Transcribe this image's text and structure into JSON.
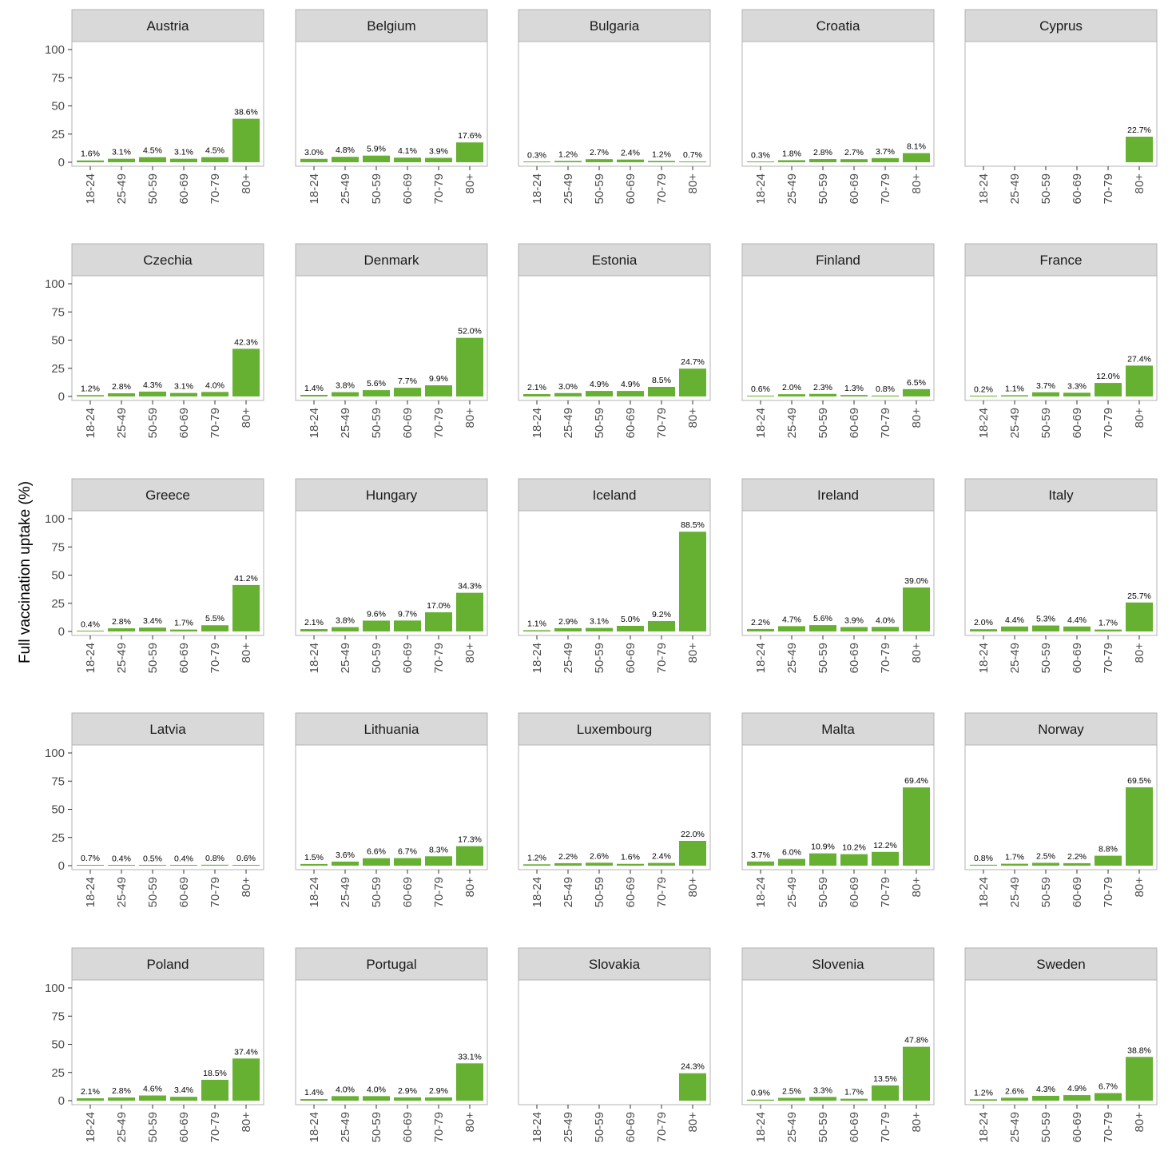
{
  "chart_data": {
    "type": "bar",
    "facet_layout": {
      "rows": 5,
      "cols": 5
    },
    "ylabel": "Full vaccination uptake (%)",
    "ylim": [
      0,
      100
    ],
    "yticks": [
      0,
      25,
      50,
      75,
      100
    ],
    "categories": [
      "18-24",
      "25-49",
      "50-59",
      "60-69",
      "70-79",
      "80+"
    ],
    "bar_color": "#66b032",
    "strip_color": "#d9d9d9",
    "panel_border_color": "#b3b3b3",
    "grid": false,
    "panels": [
      {
        "title": "Austria",
        "values": [
          1.6,
          3.1,
          4.5,
          3.1,
          4.5,
          38.6
        ],
        "labels": [
          "1.6%",
          "3.1%",
          "4.5%",
          "3.1%",
          "4.5%",
          "38.6%"
        ]
      },
      {
        "title": "Belgium",
        "values": [
          3.0,
          4.8,
          5.9,
          4.1,
          3.9,
          17.6
        ],
        "labels": [
          "3.0%",
          "4.8%",
          "5.9%",
          "4.1%",
          "3.9%",
          "17.6%"
        ]
      },
      {
        "title": "Bulgaria",
        "values": [
          0.3,
          1.2,
          2.7,
          2.4,
          1.2,
          0.7
        ],
        "labels": [
          "0.3%",
          "1.2%",
          "2.7%",
          "2.4%",
          "1.2%",
          "0.7%"
        ]
      },
      {
        "title": "Croatia",
        "values": [
          0.3,
          1.8,
          2.8,
          2.7,
          3.7,
          8.1
        ],
        "labels": [
          "0.3%",
          "1.8%",
          "2.8%",
          "2.7%",
          "3.7%",
          "8.1%"
        ]
      },
      {
        "title": "Cyprus",
        "values": [
          null,
          null,
          null,
          null,
          null,
          22.7
        ],
        "labels": [
          "",
          "",
          "",
          "",
          "",
          "22.7%"
        ]
      },
      {
        "title": "Czechia",
        "values": [
          1.2,
          2.8,
          4.3,
          3.1,
          4.0,
          42.3
        ],
        "labels": [
          "1.2%",
          "2.8%",
          "4.3%",
          "3.1%",
          "4.0%",
          "42.3%"
        ]
      },
      {
        "title": "Denmark",
        "values": [
          1.4,
          3.8,
          5.6,
          7.7,
          9.9,
          52.0
        ],
        "labels": [
          "1.4%",
          "3.8%",
          "5.6%",
          "7.7%",
          "9.9%",
          "52.0%"
        ]
      },
      {
        "title": "Estonia",
        "values": [
          2.1,
          3.0,
          4.9,
          4.9,
          8.5,
          24.7
        ],
        "labels": [
          "2.1%",
          "3.0%",
          "4.9%",
          "4.9%",
          "8.5%",
          "24.7%"
        ]
      },
      {
        "title": "Finland",
        "values": [
          0.6,
          2.0,
          2.3,
          1.3,
          0.8,
          6.5
        ],
        "labels": [
          "0.6%",
          "2.0%",
          "2.3%",
          "1.3%",
          "0.8%",
          "6.5%"
        ]
      },
      {
        "title": "France",
        "values": [
          0.2,
          1.1,
          3.7,
          3.3,
          12.0,
          27.4
        ],
        "labels": [
          "0.2%",
          "1.1%",
          "3.7%",
          "3.3%",
          "12.0%",
          "27.4%"
        ]
      },
      {
        "title": "Greece",
        "values": [
          0.4,
          2.8,
          3.4,
          1.7,
          5.5,
          41.2
        ],
        "labels": [
          "0.4%",
          "2.8%",
          "3.4%",
          "1.7%",
          "5.5%",
          "41.2%"
        ]
      },
      {
        "title": "Hungary",
        "values": [
          2.1,
          3.8,
          9.6,
          9.7,
          17.0,
          34.3
        ],
        "labels": [
          "2.1%",
          "3.8%",
          "9.6%",
          "9.7%",
          "17.0%",
          "34.3%"
        ]
      },
      {
        "title": "Iceland",
        "values": [
          1.1,
          2.9,
          3.1,
          5.0,
          9.2,
          88.5
        ],
        "labels": [
          "1.1%",
          "2.9%",
          "3.1%",
          "5.0%",
          "9.2%",
          "88.5%"
        ]
      },
      {
        "title": "Ireland",
        "values": [
          2.2,
          4.7,
          5.6,
          3.9,
          4.0,
          39.0
        ],
        "labels": [
          "2.2%",
          "4.7%",
          "5.6%",
          "3.9%",
          "4.0%",
          "39.0%"
        ]
      },
      {
        "title": "Italy",
        "values": [
          2.0,
          4.4,
          5.3,
          4.4,
          1.7,
          25.7
        ],
        "labels": [
          "2.0%",
          "4.4%",
          "5.3%",
          "4.4%",
          "1.7%",
          "25.7%"
        ]
      },
      {
        "title": "Latvia",
        "values": [
          0.7,
          0.4,
          0.5,
          0.4,
          0.8,
          0.6
        ],
        "labels": [
          "0.7%",
          "0.4%",
          "0.5%",
          "0.4%",
          "0.8%",
          "0.6%"
        ]
      },
      {
        "title": "Lithuania",
        "values": [
          1.5,
          3.6,
          6.6,
          6.7,
          8.3,
          17.3
        ],
        "labels": [
          "1.5%",
          "3.6%",
          "6.6%",
          "6.7%",
          "8.3%",
          "17.3%"
        ]
      },
      {
        "title": "Luxembourg",
        "values": [
          1.2,
          2.2,
          2.6,
          1.6,
          2.4,
          22.0
        ],
        "labels": [
          "1.2%",
          "2.2%",
          "2.6%",
          "1.6%",
          "2.4%",
          "22.0%"
        ]
      },
      {
        "title": "Malta",
        "values": [
          3.7,
          6.0,
          10.9,
          10.2,
          12.2,
          69.4
        ],
        "labels": [
          "3.7%",
          "6.0%",
          "10.9%",
          "10.2%",
          "12.2%",
          "69.4%"
        ]
      },
      {
        "title": "Norway",
        "values": [
          0.8,
          1.7,
          2.5,
          2.2,
          8.8,
          69.5
        ],
        "labels": [
          "0.8%",
          "1.7%",
          "2.5%",
          "2.2%",
          "8.8%",
          "69.5%"
        ]
      },
      {
        "title": "Poland",
        "values": [
          2.1,
          2.8,
          4.6,
          3.4,
          18.5,
          37.4
        ],
        "labels": [
          "2.1%",
          "2.8%",
          "4.6%",
          "3.4%",
          "18.5%",
          "37.4%"
        ]
      },
      {
        "title": "Portugal",
        "values": [
          1.4,
          4.0,
          4.0,
          2.9,
          2.9,
          33.1
        ],
        "labels": [
          "1.4%",
          "4.0%",
          "4.0%",
          "2.9%",
          "2.9%",
          "33.1%"
        ]
      },
      {
        "title": "Slovakia",
        "values": [
          null,
          null,
          null,
          null,
          null,
          24.3
        ],
        "labels": [
          "",
          "",
          "",
          "",
          "",
          "24.3%"
        ]
      },
      {
        "title": "Slovenia",
        "values": [
          0.9,
          2.5,
          3.3,
          1.7,
          13.5,
          47.8
        ],
        "labels": [
          "0.9%",
          "2.5%",
          "3.3%",
          "1.7%",
          "13.5%",
          "47.8%"
        ]
      },
      {
        "title": "Sweden",
        "values": [
          1.2,
          2.6,
          4.3,
          4.9,
          6.7,
          38.8
        ],
        "labels": [
          "1.2%",
          "2.6%",
          "4.3%",
          "4.9%",
          "6.7%",
          "38.8%"
        ]
      }
    ]
  }
}
